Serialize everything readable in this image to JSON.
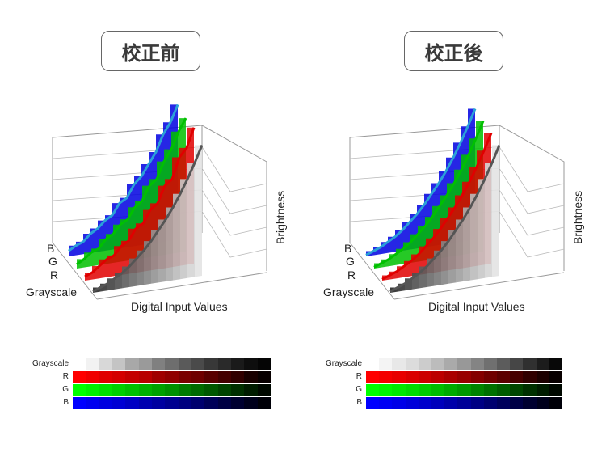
{
  "panels": [
    {
      "title": "校正前"
    },
    {
      "title": "校正後"
    }
  ],
  "labels": {
    "B": "B",
    "G": "G",
    "R": "R",
    "grayscale": "Grayscale",
    "xlabel": "Digital Input Values",
    "zlabel": "Brightness"
  },
  "chart_data": [
    {
      "type": "area",
      "title": "校正前",
      "xlabel": "Digital Input Values",
      "ylabel": "Brightness",
      "series_labels": [
        "B",
        "G",
        "R",
        "Grayscale"
      ],
      "x": [
        0,
        1,
        2,
        3,
        4,
        5,
        6,
        7,
        8,
        9,
        10,
        11,
        12,
        13,
        14,
        15
      ],
      "series": [
        {
          "name": "B",
          "values": [
            0.04,
            0.07,
            0.09,
            0.14,
            0.17,
            0.22,
            0.25,
            0.33,
            0.36,
            0.45,
            0.5,
            0.58,
            0.66,
            0.78,
            0.86,
            0.98
          ]
        },
        {
          "name": "G",
          "values": [
            0.03,
            0.06,
            0.1,
            0.12,
            0.18,
            0.21,
            0.27,
            0.3,
            0.38,
            0.42,
            0.52,
            0.56,
            0.68,
            0.76,
            0.88,
            0.97
          ]
        },
        {
          "name": "R",
          "values": [
            0.03,
            0.05,
            0.09,
            0.13,
            0.15,
            0.21,
            0.24,
            0.32,
            0.35,
            0.44,
            0.48,
            0.6,
            0.64,
            0.79,
            0.85,
            0.99
          ]
        },
        {
          "name": "Grayscale",
          "values": [
            0.01,
            0.03,
            0.05,
            0.08,
            0.11,
            0.15,
            0.2,
            0.25,
            0.31,
            0.38,
            0.45,
            0.53,
            0.62,
            0.72,
            0.83,
            0.95
          ]
        }
      ],
      "colors": {
        "B": "#0000e0",
        "G": "#00c000",
        "R": "#e00000",
        "Grayscale": "#555555",
        "outline": "#2aa0d8"
      }
    },
    {
      "type": "area",
      "title": "校正後",
      "xlabel": "Digital Input Values",
      "ylabel": "Brightness",
      "series_labels": [
        "B",
        "G",
        "R",
        "Grayscale"
      ],
      "x": [
        0,
        1,
        2,
        3,
        4,
        5,
        6,
        7,
        8,
        9,
        10,
        11,
        12,
        13,
        14,
        15
      ],
      "series": [
        {
          "name": "B",
          "values": [
            0.01,
            0.03,
            0.05,
            0.08,
            0.11,
            0.15,
            0.2,
            0.25,
            0.31,
            0.38,
            0.45,
            0.53,
            0.62,
            0.72,
            0.83,
            0.95
          ]
        },
        {
          "name": "G",
          "values": [
            0.01,
            0.03,
            0.05,
            0.08,
            0.11,
            0.15,
            0.2,
            0.25,
            0.31,
            0.38,
            0.45,
            0.53,
            0.62,
            0.72,
            0.83,
            0.95
          ]
        },
        {
          "name": "R",
          "values": [
            0.01,
            0.03,
            0.05,
            0.08,
            0.11,
            0.15,
            0.2,
            0.25,
            0.31,
            0.38,
            0.45,
            0.53,
            0.62,
            0.72,
            0.83,
            0.95
          ]
        },
        {
          "name": "Grayscale",
          "values": [
            0.01,
            0.03,
            0.05,
            0.08,
            0.11,
            0.15,
            0.2,
            0.25,
            0.31,
            0.38,
            0.45,
            0.53,
            0.62,
            0.72,
            0.83,
            0.95
          ]
        }
      ],
      "colors": {
        "B": "#0000e0",
        "G": "#00c000",
        "R": "#e00000",
        "Grayscale": "#555555",
        "outline": "#2aa0d8"
      }
    }
  ],
  "strips": {
    "labels": [
      "Grayscale",
      "R",
      "G",
      "B"
    ],
    "before": {
      "grayscale": [
        "#ffffff",
        "#f2f2f2",
        "#d8d8d8",
        "#c4c4c4",
        "#a8a8a8",
        "#9a9a9a",
        "#808080",
        "#6e6e6e",
        "#5a5a5a",
        "#4a4a4a",
        "#383838",
        "#2a2a2a",
        "#1a1a1a",
        "#0e0e0e",
        "#050505"
      ],
      "r": [
        "#ff0000",
        "#f00000",
        "#e00000",
        "#d40000",
        "#c40000",
        "#b80000",
        "#a00000",
        "#900000",
        "#7a0000",
        "#6e0000",
        "#580000",
        "#440000",
        "#300000",
        "#180000",
        "#080000"
      ],
      "g": [
        "#00ff00",
        "#00f000",
        "#00e000",
        "#00d000",
        "#00c000",
        "#00b000",
        "#00a000",
        "#009000",
        "#007a00",
        "#006a00",
        "#005800",
        "#004400",
        "#003000",
        "#001c00",
        "#000800"
      ],
      "b": [
        "#0000ff",
        "#0000f0",
        "#0000e0",
        "#0000d4",
        "#0000c4",
        "#0000b0",
        "#0000a0",
        "#000090",
        "#000080",
        "#00006e",
        "#000058",
        "#000044",
        "#000030",
        "#00001c",
        "#000008"
      ]
    },
    "after": {
      "grayscale": [
        "#ffffff",
        "#f4f4f4",
        "#e8e8e8",
        "#dcdcdc",
        "#cccccc",
        "#bcbcbc",
        "#aaaaaa",
        "#989898",
        "#848484",
        "#707070",
        "#5c5c5c",
        "#464646",
        "#303030",
        "#1c1c1c",
        "#080808"
      ],
      "r": [
        "#ff0000",
        "#f40000",
        "#e80000",
        "#da0000",
        "#cc0000",
        "#bc0000",
        "#aa0000",
        "#980000",
        "#840000",
        "#700000",
        "#5c0000",
        "#460000",
        "#300000",
        "#1c0000",
        "#080000"
      ],
      "g": [
        "#00ff00",
        "#00f400",
        "#00e800",
        "#00da00",
        "#00cc00",
        "#00bc00",
        "#00aa00",
        "#009800",
        "#008400",
        "#007000",
        "#005c00",
        "#004600",
        "#003000",
        "#001c00",
        "#000800"
      ],
      "b": [
        "#0000ff",
        "#0000f4",
        "#0000e8",
        "#0000da",
        "#0000cc",
        "#0000bc",
        "#0000aa",
        "#000098",
        "#000084",
        "#000070",
        "#00005c",
        "#000046",
        "#000030",
        "#00001c",
        "#000008"
      ]
    }
  }
}
